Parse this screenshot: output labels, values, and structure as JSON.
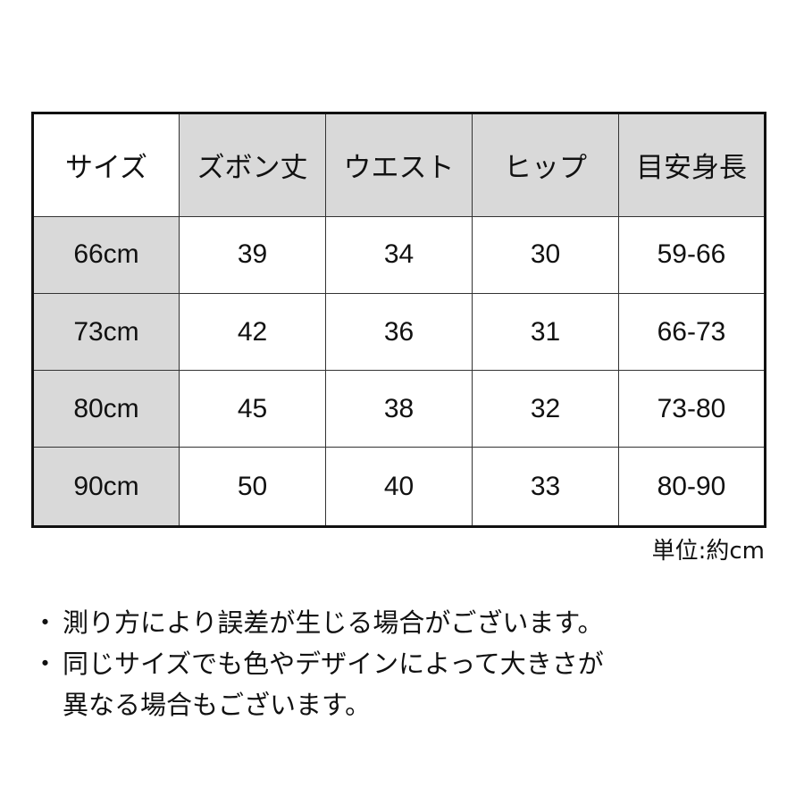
{
  "table": {
    "headers": [
      "サイズ",
      "ズボン丈",
      "ウエスト",
      "ヒップ",
      "目安身長"
    ],
    "rows": [
      [
        "66cm",
        "39",
        "34",
        "30",
        "59-66"
      ],
      [
        "73cm",
        "42",
        "36",
        "31",
        "66-73"
      ],
      [
        "80cm",
        "45",
        "38",
        "32",
        "73-80"
      ],
      [
        "90cm",
        "50",
        "40",
        "33",
        "80-90"
      ]
    ]
  },
  "unit_label": "単位:約cm",
  "notes": {
    "bullet": "・",
    "items": [
      [
        "測り方により誤差が生じる場合がございます。"
      ],
      [
        "同じサイズでも色やデザインによって大きさが",
        "異なる場合もございます。"
      ]
    ]
  },
  "colors": {
    "header_fill": "#d9d9d9",
    "border": "#111111"
  }
}
